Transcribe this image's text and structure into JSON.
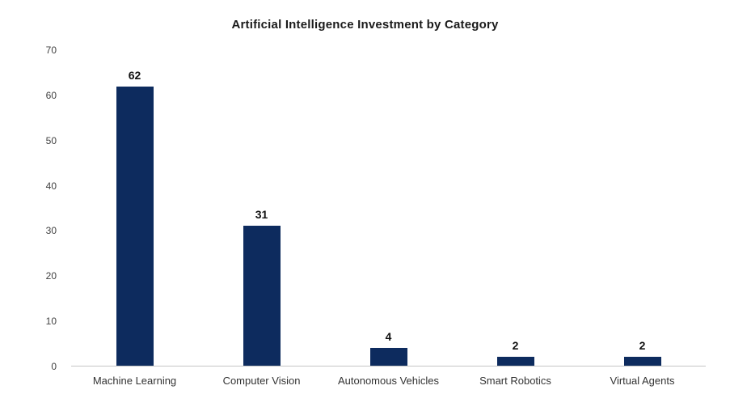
{
  "chart_data": {
    "type": "bar",
    "title": "Artificial Intelligence Investment by Category",
    "categories": [
      "Machine Learning",
      "Computer Vision",
      "Autonomous Vehicles",
      "Smart Robotics",
      "Virtual Agents"
    ],
    "values": [
      62,
      31,
      4,
      2,
      2
    ],
    "xlabel": "",
    "ylabel": "",
    "ylim": [
      0,
      70
    ],
    "ytick_step": 10,
    "bar_color": "#0d2b5e",
    "grid": false,
    "legend": "none"
  }
}
